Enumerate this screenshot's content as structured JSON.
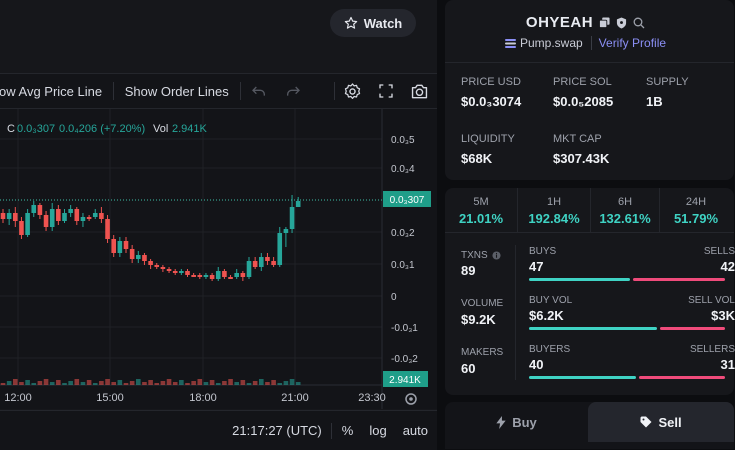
{
  "watch": {
    "label": "Watch"
  },
  "toolbar": {
    "avg_price_line": "ow Avg Price Line",
    "order_lines": "Show Order Lines"
  },
  "legend": {
    "c_label": "C",
    "c_value": "0.0₃307",
    "change": "0.0₄206 (+7.20%)",
    "vol_label": "Vol",
    "vol_value": "2.941K"
  },
  "chart": {
    "y_ticks": [
      "0.0₃5",
      "0.0₃4",
      "0.0₃2",
      "0.0₃1",
      "0",
      "-0.0₃1",
      "-0.0₃2"
    ],
    "x_ticks": [
      "12:00",
      "15:00",
      "18:00",
      "21:00",
      "23:30"
    ],
    "price_tag": "0.0₃307",
    "volume_tag": "2.941K",
    "up_color": "#26a69a",
    "down_color": "#ef5350"
  },
  "bottom": {
    "time": "21:17:27 (UTC)",
    "percent": "%",
    "log": "log",
    "auto": "auto"
  },
  "token": {
    "name": "OHYEAH",
    "platform": "Pump.swap",
    "verify": "Verify Profile"
  },
  "metrics": {
    "price_usd": {
      "label": "PRICE USD",
      "value": "$0.0₃3074"
    },
    "price_sol": {
      "label": "PRICE SOL",
      "value": "$0.0₅2085"
    },
    "supply": {
      "label": "SUPPLY",
      "value": "1B"
    },
    "liquidity": {
      "label": "LIQUIDITY",
      "value": "$68K"
    },
    "mkt_cap": {
      "label": "MKT CAP",
      "value": "$307.43K"
    }
  },
  "timeframes": [
    {
      "label": "5M",
      "value": "21.01%"
    },
    {
      "label": "1H",
      "value": "192.84%"
    },
    {
      "label": "6H",
      "value": "132.61%"
    },
    {
      "label": "24H",
      "value": "51.79%"
    }
  ],
  "stats": {
    "txns": {
      "label": "TXNS",
      "value": "89"
    },
    "volume": {
      "label": "VOLUME",
      "value": "$9.2K"
    },
    "makers": {
      "label": "MAKERS",
      "value": "60"
    },
    "buys": {
      "label": "BUYS",
      "value": "47",
      "fraction": 0.53
    },
    "sells": {
      "label": "SELLS",
      "value": "42"
    },
    "buy_vol": {
      "label": "BUY VOL",
      "value": "$6.2K",
      "fraction": 0.67
    },
    "sell_vol": {
      "label": "SELL VOL",
      "value": "$3K"
    },
    "buyers": {
      "label": "BUYERS",
      "value": "40",
      "fraction": 0.56
    },
    "sellers": {
      "label": "SELLERS",
      "value": "31"
    }
  },
  "trade": {
    "buy": "Buy",
    "sell": "Sell"
  }
}
